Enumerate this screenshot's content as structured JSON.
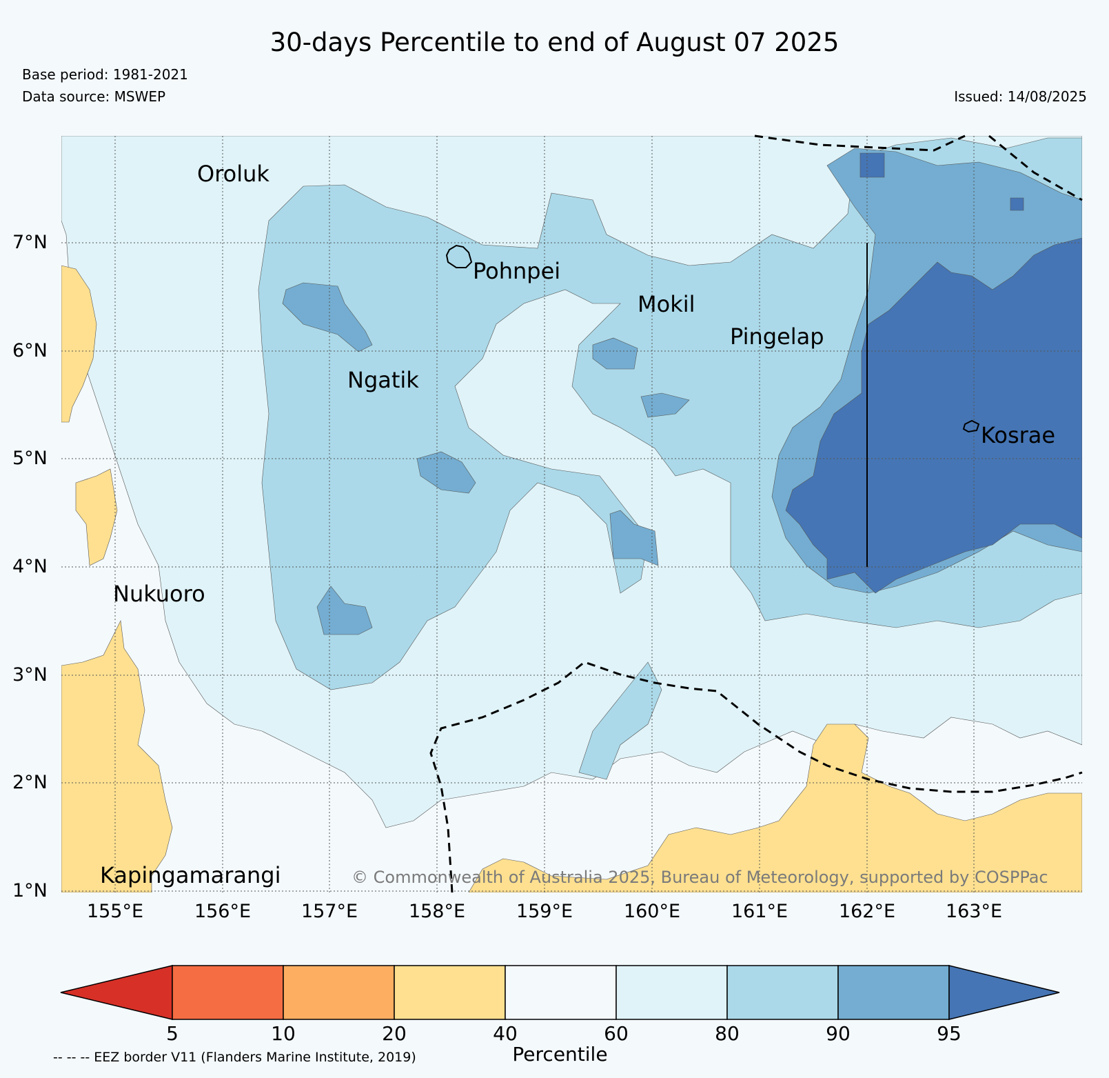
{
  "title": "30-days Percentile to end of August 07 2025",
  "base_period": "Base period: 1981-2021",
  "data_source": "Data source: MSWEP",
  "issued": "Issued: 14/08/2025",
  "copyright": "© Commonwealth of Australia 2025, Bureau of Meteorology, supported by COSPPac",
  "eez_note": "-- -- -- EEZ border V11 (Flanders Marine Institute, 2019)",
  "map": {
    "lon_range": [
      154.5,
      164.0
    ],
    "lat_range": [
      1.0,
      8.0
    ],
    "lat_labels": [
      "7°N",
      "6°N",
      "5°N",
      "4°N",
      "3°N",
      "2°N",
      "1°N"
    ],
    "lon_labels": [
      "155°E",
      "156°E",
      "157°E",
      "158°E",
      "159°E",
      "160°E",
      "161°E",
      "162°E",
      "163°E"
    ],
    "places": [
      {
        "name": "Oroluk"
      },
      {
        "name": "Pohnpei"
      },
      {
        "name": "Mokil"
      },
      {
        "name": "Pingelap"
      },
      {
        "name": "Ngatik"
      },
      {
        "name": "Kosrae"
      },
      {
        "name": "Nukuoro"
      },
      {
        "name": "Kapingamarangi"
      }
    ]
  },
  "colorbar": {
    "title": "Percentile",
    "ticks": [
      "5",
      "10",
      "20",
      "40",
      "60",
      "80",
      "90",
      "95"
    ],
    "colors": {
      "below_5": "#d73027",
      "5-10": "#f46d43",
      "10-20": "#fdae61",
      "20-40": "#fee090",
      "40-60": "#f4f9fc",
      "60-80": "#e0f3f8",
      "80-90": "#abd9e9",
      "90-95": "#74add1",
      "above_95": "#4575b4"
    }
  }
}
